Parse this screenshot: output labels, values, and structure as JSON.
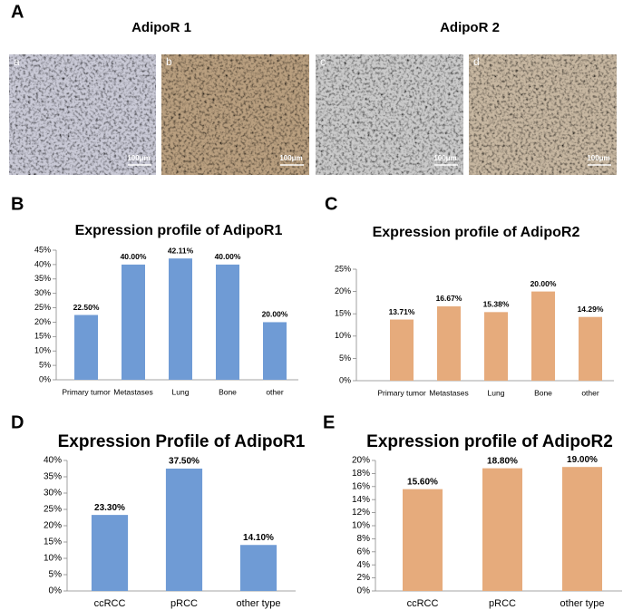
{
  "panel_letters": [
    "A",
    "B",
    "C",
    "D",
    "E"
  ],
  "panel_a": {
    "titles": [
      "AdipoR 1",
      "AdipoR 2"
    ],
    "images": [
      {
        "label": "a",
        "scale_bar": "100μm"
      },
      {
        "label": "b",
        "scale_bar": "100μm"
      },
      {
        "label": "c",
        "scale_bar": "100μm"
      },
      {
        "label": "d",
        "scale_bar": "100μm"
      }
    ]
  },
  "chart_data": [
    {
      "type": "bar",
      "title": "Expression profile of AdipoR1",
      "categories": [
        "Primary tumor",
        "Metastases",
        "Lung",
        "Bone",
        "other"
      ],
      "values": [
        22.5,
        40,
        42.11,
        40,
        20
      ],
      "value_labels": [
        "22.50%",
        "40.00%",
        "42.11%",
        "40.00%",
        "20.00%"
      ],
      "color": "#6f9bd5",
      "ylim": [
        0,
        45
      ],
      "yticks": [
        {
          "value": 0,
          "label": "0%"
        },
        {
          "value": 5,
          "label": "5%"
        },
        {
          "value": 10,
          "label": "10%"
        },
        {
          "value": 15,
          "label": "15%"
        },
        {
          "value": 20,
          "label": "20%"
        },
        {
          "value": 25,
          "label": "25%"
        },
        {
          "value": 30,
          "label": "30%"
        },
        {
          "value": 35,
          "label": "35%"
        },
        {
          "value": 40,
          "label": "40%"
        },
        {
          "value": 45,
          "label": "45%"
        }
      ],
      "grid": false
    },
    {
      "type": "bar",
      "title": "Expression profile of AdipoR2",
      "categories": [
        "Primary tumor",
        "Metastases",
        "Lung",
        "Bone",
        "other"
      ],
      "values": [
        13.71,
        16.67,
        15.38,
        20,
        14.29
      ],
      "value_labels": [
        "13.71%",
        "16.67%",
        "15.38%",
        "20.00%",
        "14.29%"
      ],
      "color": "#e6ab7c",
      "ylim": [
        0,
        25
      ],
      "yticks": [
        {
          "value": 0,
          "label": "0%"
        },
        {
          "value": 5,
          "label": "5%"
        },
        {
          "value": 10,
          "label": "10%"
        },
        {
          "value": 15,
          "label": "15%"
        },
        {
          "value": 20,
          "label": "20%"
        },
        {
          "value": 25,
          "label": "25%"
        }
      ],
      "grid": false
    },
    {
      "type": "bar",
      "title": "Expression Profile of AdipoR1",
      "categories": [
        "ccRCC",
        "pRCC",
        "other type"
      ],
      "values": [
        23.3,
        37.5,
        14.1
      ],
      "value_labels": [
        "23.30%",
        "37.50%",
        "14.10%"
      ],
      "color": "#6f9bd5",
      "ylim": [
        0,
        40
      ],
      "yticks": [
        {
          "value": 0,
          "label": "0%"
        },
        {
          "value": 5,
          "label": "5%"
        },
        {
          "value": 10,
          "label": "10%"
        },
        {
          "value": 15,
          "label": "15%"
        },
        {
          "value": 20,
          "label": "20%"
        },
        {
          "value": 25,
          "label": "25%"
        },
        {
          "value": 30,
          "label": "30%"
        },
        {
          "value": 35,
          "label": "35%"
        },
        {
          "value": 40,
          "label": "40%"
        }
      ],
      "grid": false
    },
    {
      "type": "bar",
      "title": "Expression profile of AdipoR2",
      "categories": [
        "ccRCC",
        "pRCC",
        "other type"
      ],
      "values": [
        15.6,
        18.8,
        19
      ],
      "value_labels": [
        "15.60%",
        "18.80%",
        "19.00%"
      ],
      "color": "#e6ab7c",
      "ylim": [
        0,
        20
      ],
      "yticks": [
        {
          "value": 0,
          "label": "0%"
        },
        {
          "value": 2,
          "label": "2%"
        },
        {
          "value": 4,
          "label": "4%"
        },
        {
          "value": 6,
          "label": "6%"
        },
        {
          "value": 8,
          "label": "8%"
        },
        {
          "value": 10,
          "label": "10%"
        },
        {
          "value": 12,
          "label": "12%"
        },
        {
          "value": 14,
          "label": "14%"
        },
        {
          "value": 16,
          "label": "16%"
        },
        {
          "value": 18,
          "label": "18%"
        },
        {
          "value": 20,
          "label": "20%"
        }
      ],
      "grid": false
    }
  ]
}
